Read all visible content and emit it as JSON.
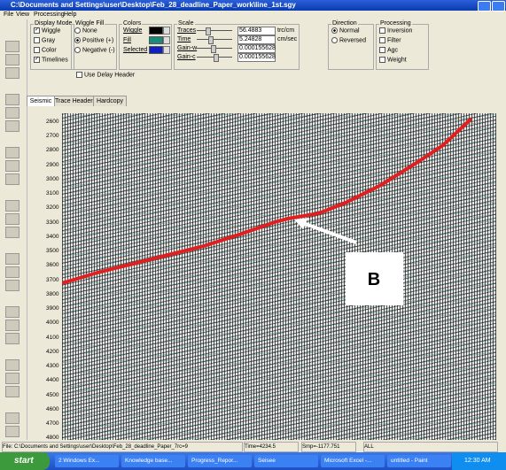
{
  "window": {
    "title": "C:\\Documents and Settings\\user\\Desktop\\Feb_28_deadline_Paper_work\\line_1st.sgy",
    "menu": [
      "File",
      "View",
      "Processing",
      "Help"
    ]
  },
  "toolbar": {
    "display_mode": {
      "title": "Display Mode",
      "options": [
        "Wiggle",
        "Gray",
        "Color",
        "Timelines"
      ]
    },
    "wiggle_fill": {
      "title": "Wiggle Fill",
      "options": [
        "None",
        "Positive (+)",
        "Negative (-)"
      ]
    },
    "colors": {
      "title": "Colors",
      "options": [
        "Wiggle",
        "Fill",
        "Selected"
      ]
    },
    "scale": {
      "title": "Scale",
      "rows": [
        {
          "label": "Traces",
          "value": "56.4883",
          "unit": "trc/cm"
        },
        {
          "label": "Time",
          "value": "5.24828",
          "unit": "cm/sec"
        },
        {
          "label": "Gain-w",
          "value": "0.000155628"
        },
        {
          "label": "Gain-c",
          "value": "0.000155628"
        }
      ]
    },
    "direction": {
      "title": "Direction",
      "options": [
        "Normal",
        "Reversed"
      ]
    },
    "processing": {
      "title": "Processing",
      "options": [
        "Inversion",
        "Filter",
        "Agc",
        "Weight"
      ]
    },
    "use_delay_header": "Use Delay Header"
  },
  "tabs": [
    "Seismic",
    "Trace Headers",
    "Hardcopy"
  ],
  "depth_labels": [
    "2600",
    "2700",
    "2800",
    "2900",
    "3000",
    "3100",
    "3200",
    "3300",
    "3400",
    "3500",
    "3600",
    "3700",
    "3800",
    "3900",
    "4000",
    "4100",
    "4200",
    "4300",
    "4400",
    "4500",
    "4600",
    "4700",
    "4800"
  ],
  "annotation": "B",
  "status": [
    "File: C:\\Documents and Settings\\user\\Desktop\\Feb_28_deadline_Paper_7rc=9",
    "Time=4234.5",
    "Smp=-1177.751",
    "ALL"
  ],
  "taskbar": {
    "start": "start",
    "items": [
      "2 Windows Ex...",
      "Knowledge base...",
      "Progress_Repor...",
      "Seisee",
      "Microsoft Excel -...",
      "untitled - Paint"
    ],
    "clock": "12:30 AM"
  }
}
